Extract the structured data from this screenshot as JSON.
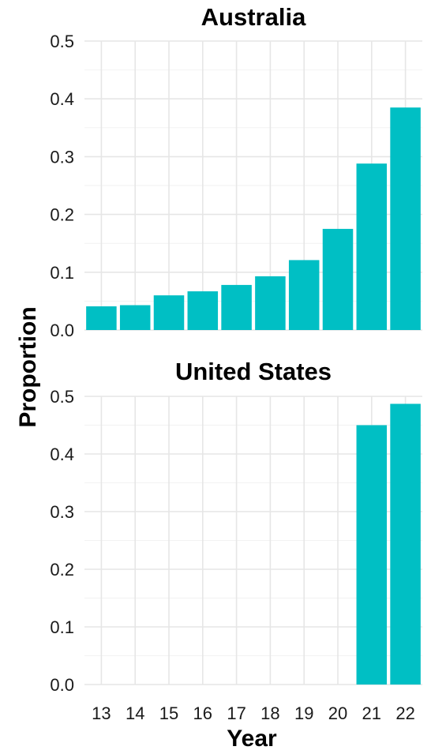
{
  "chart_data": {
    "type": "bar",
    "facet": "vertical",
    "xlabel": "Year",
    "ylabel": "Proportion",
    "bar_color": "#00BFC4",
    "grid": true,
    "legend": "none",
    "categories": [
      "13",
      "14",
      "15",
      "16",
      "17",
      "18",
      "19",
      "20",
      "21",
      "22"
    ],
    "y_ticks": [
      "0.0",
      "0.1",
      "0.2",
      "0.3",
      "0.4",
      "0.5"
    ],
    "ylim": [
      0,
      0.5
    ],
    "panels": [
      {
        "title": "Australia",
        "values": [
          0.041,
          0.043,
          0.06,
          0.067,
          0.078,
          0.093,
          0.121,
          0.175,
          0.288,
          0.385
        ]
      },
      {
        "title": "United States",
        "values": [
          null,
          null,
          null,
          null,
          null,
          null,
          null,
          null,
          0.45,
          0.487
        ]
      }
    ]
  }
}
